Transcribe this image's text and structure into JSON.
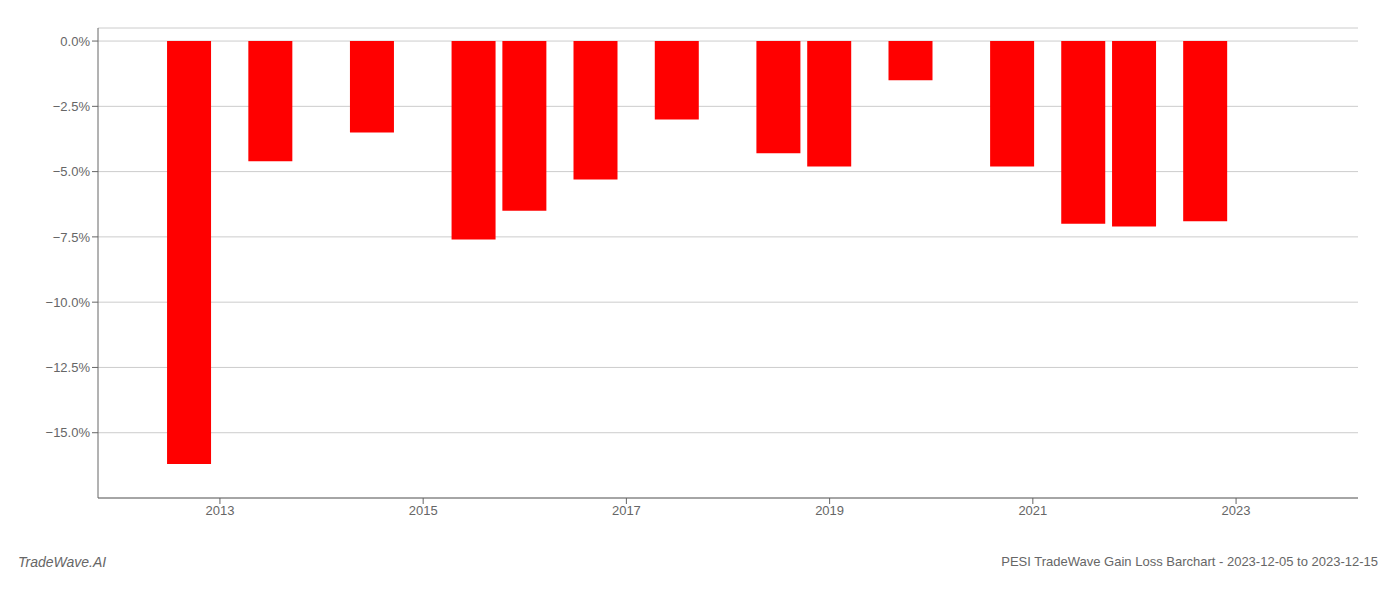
{
  "chart_data": {
    "type": "bar",
    "x": [
      2012.7,
      2013.5,
      2014.5,
      2015.5,
      2016.0,
      2016.7,
      2017.5,
      2018.5,
      2019.0,
      2019.8,
      2020.8,
      2021.5,
      2022.0,
      2022.7
    ],
    "values": [
      -16.2,
      -4.6,
      -3.5,
      -7.6,
      -6.5,
      -5.3,
      -3.0,
      -4.3,
      -4.8,
      -1.5,
      -4.8,
      -7.0,
      -7.1,
      -6.9
    ],
    "color": "#ff0000",
    "xlim": [
      2011.8,
      2024.2
    ],
    "xticks": [
      2013,
      2015,
      2017,
      2019,
      2021,
      2023
    ],
    "ylim": [
      -17.5,
      0.5
    ],
    "yticks": [
      {
        "value": 0.0,
        "label": "0.0%"
      },
      {
        "value": -2.5,
        "label": "−2.5%"
      },
      {
        "value": -5.0,
        "label": "−5.0%"
      },
      {
        "value": -7.5,
        "label": "−7.5%"
      },
      {
        "value": -10.0,
        "label": "−10.0%"
      },
      {
        "value": -12.5,
        "label": "−12.5%"
      },
      {
        "value": -15.0,
        "label": "−15.0%"
      }
    ],
    "grid": true,
    "annotations": [
      "TradeWave.AI",
      "PESI TradeWave Gain Loss Barchart - 2023-12-05 to 2023-12-15"
    ]
  }
}
